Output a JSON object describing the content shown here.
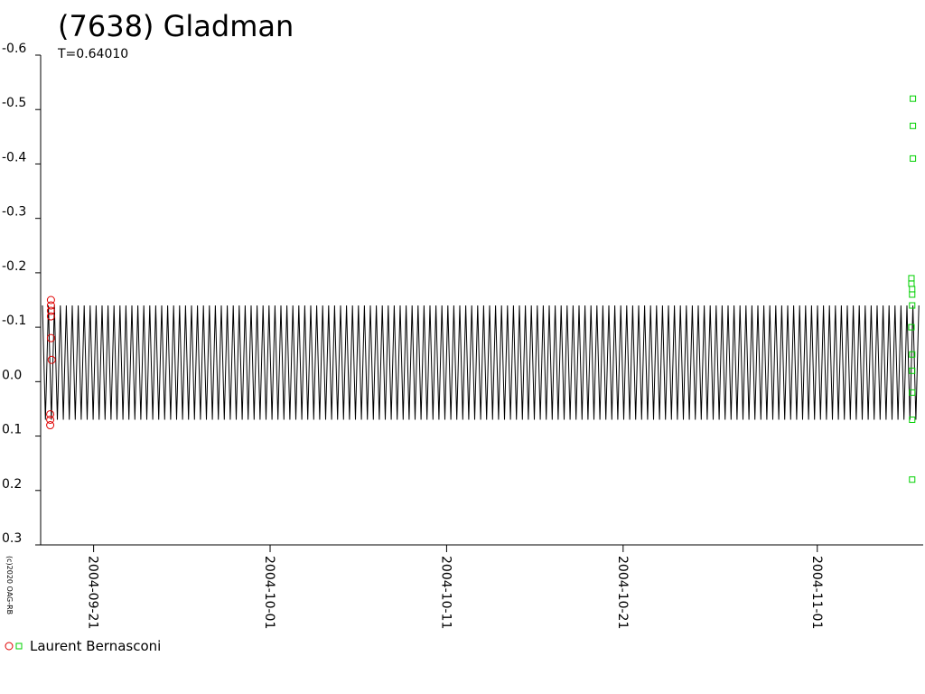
{
  "chart_data": {
    "type": "scatter",
    "title": "(7638) Gladman",
    "subtitle": "T=0.64010",
    "credit": "(c)2020 OAG-RB",
    "xlim": [
      "2004-09-18",
      "2004-11-07"
    ],
    "xticks": [
      "2004-09-21",
      "2004-10-01",
      "2004-10-11",
      "2004-10-21",
      "2004-11-01"
    ],
    "ylim": [
      -0.6,
      0.3
    ],
    "yticks": [
      -0.6,
      -0.5,
      -0.4,
      -0.3,
      -0.2,
      -0.1,
      {
        "value": 0,
        "label": "0.0"
      },
      0.1,
      0.2,
      0.3
    ],
    "y_inverted": true,
    "model": {
      "min": -0.14,
      "max": 0.07,
      "color": "#000000"
    },
    "legend": "Laurent Bernasconi",
    "series": [
      {
        "marker": "circle",
        "color": "#e00000",
        "x": [
          "2004-09-18T14:00",
          "2004-09-18T14:00",
          "2004-09-18T14:00",
          "2004-09-18T14:00",
          "2004-09-18T14:00",
          "2004-09-18T15:00",
          "2004-09-18T13:00",
          "2004-09-18T13:00",
          "2004-09-18T13:00"
        ],
        "values": [
          -0.15,
          -0.14,
          -0.13,
          -0.12,
          -0.08,
          -0.04,
          0.06,
          0.07,
          0.08
        ]
      },
      {
        "marker": "square",
        "color": "#00d000",
        "x": [
          "2004-11-06T10:00",
          "2004-11-06T10:00",
          "2004-11-06T10:00",
          "2004-11-06T08:00",
          "2004-11-06T08:00",
          "2004-11-06T09:00",
          "2004-11-06T09:00",
          "2004-11-06T09:00",
          "2004-11-06T08:00",
          "2004-11-06T09:00",
          "2004-11-06T09:00",
          "2004-11-06T09:00",
          "2004-11-06T09:00",
          "2004-11-06T09:00"
        ],
        "values": [
          -0.52,
          -0.47,
          -0.41,
          -0.19,
          -0.18,
          -0.17,
          -0.16,
          -0.14,
          -0.1,
          -0.05,
          -0.02,
          0.02,
          0.07,
          0.18
        ]
      }
    ]
  }
}
